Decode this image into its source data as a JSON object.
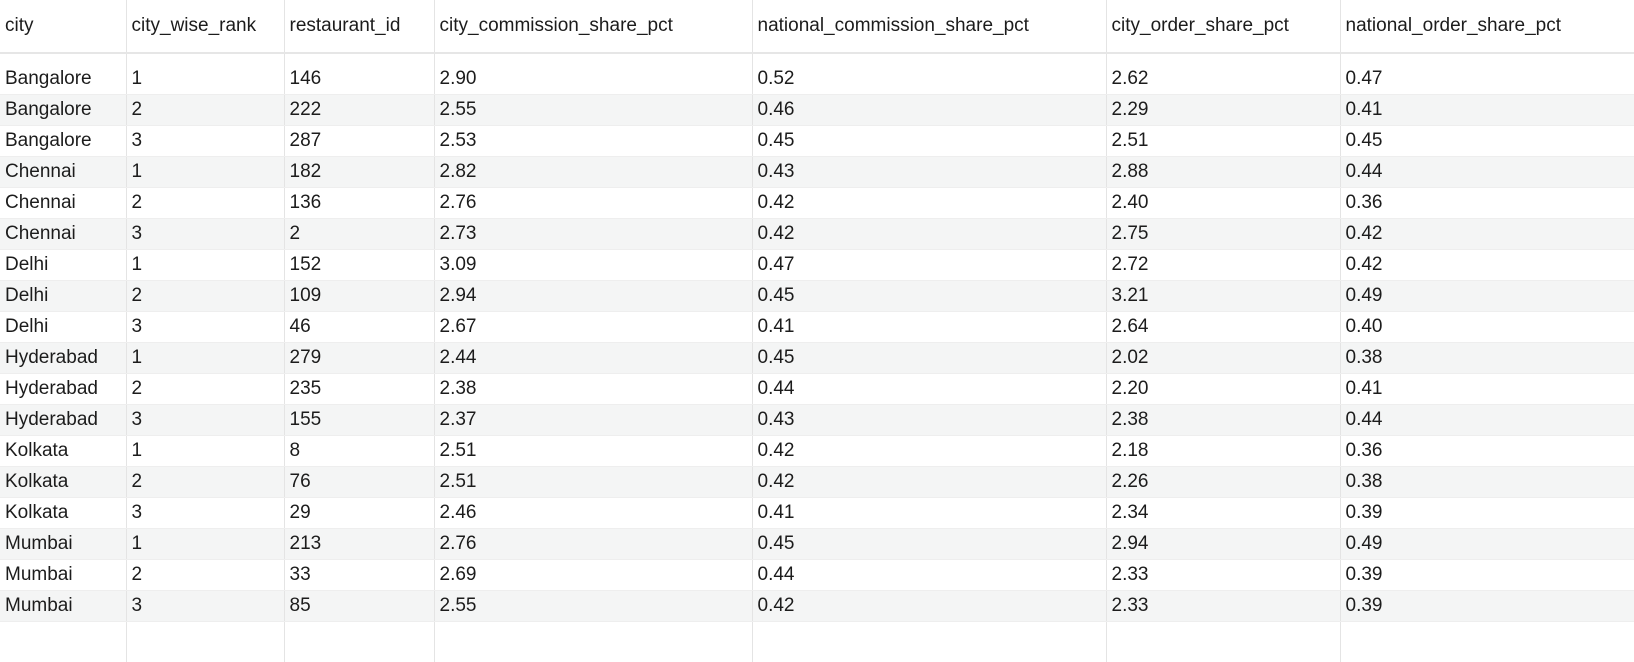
{
  "columns": [
    "city",
    "city_wise_rank",
    "restaurant_id",
    "city_commission_share_pct",
    "national_commission_share_pct",
    "city_order_share_pct",
    "national_order_share_pct"
  ],
  "rows": [
    [
      "Bangalore",
      "1",
      "146",
      "2.90",
      "0.52",
      "2.62",
      "0.47"
    ],
    [
      "Bangalore",
      "2",
      "222",
      "2.55",
      "0.46",
      "2.29",
      "0.41"
    ],
    [
      "Bangalore",
      "3",
      "287",
      "2.53",
      "0.45",
      "2.51",
      "0.45"
    ],
    [
      "Chennai",
      "1",
      "182",
      "2.82",
      "0.43",
      "2.88",
      "0.44"
    ],
    [
      "Chennai",
      "2",
      "136",
      "2.76",
      "0.42",
      "2.40",
      "0.36"
    ],
    [
      "Chennai",
      "3",
      "2",
      "2.73",
      "0.42",
      "2.75",
      "0.42"
    ],
    [
      "Delhi",
      "1",
      "152",
      "3.09",
      "0.47",
      "2.72",
      "0.42"
    ],
    [
      "Delhi",
      "2",
      "109",
      "2.94",
      "0.45",
      "3.21",
      "0.49"
    ],
    [
      "Delhi",
      "3",
      "46",
      "2.67",
      "0.41",
      "2.64",
      "0.40"
    ],
    [
      "Hyderabad",
      "1",
      "279",
      "2.44",
      "0.45",
      "2.02",
      "0.38"
    ],
    [
      "Hyderabad",
      "2",
      "235",
      "2.38",
      "0.44",
      "2.20",
      "0.41"
    ],
    [
      "Hyderabad",
      "3",
      "155",
      "2.37",
      "0.43",
      "2.38",
      "0.44"
    ],
    [
      "Kolkata",
      "1",
      "8",
      "2.51",
      "0.42",
      "2.18",
      "0.36"
    ],
    [
      "Kolkata",
      "2",
      "76",
      "2.51",
      "0.42",
      "2.26",
      "0.38"
    ],
    [
      "Kolkata",
      "3",
      "29",
      "2.46",
      "0.41",
      "2.34",
      "0.39"
    ],
    [
      "Mumbai",
      "1",
      "213",
      "2.76",
      "0.45",
      "2.94",
      "0.49"
    ],
    [
      "Mumbai",
      "2",
      "33",
      "2.69",
      "0.44",
      "2.33",
      "0.39"
    ],
    [
      "Mumbai",
      "3",
      "85",
      "2.55",
      "0.42",
      "2.33",
      "0.39"
    ]
  ]
}
